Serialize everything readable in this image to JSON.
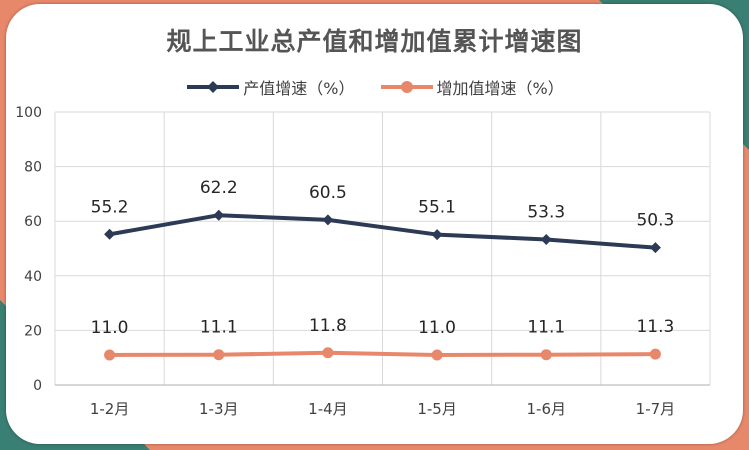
{
  "colors": {
    "series_1": "#2c3a55",
    "series_2": "#e8886a",
    "corner_teal": "#3a7f73",
    "corner_orange": "#e8886a",
    "grid": "#d9d9d9",
    "text": "#404040"
  },
  "chart_data": {
    "type": "line",
    "title": "规上工业总产值和增加值累计增速图",
    "categories": [
      "1-2月",
      "1-3月",
      "1-4月",
      "1-5月",
      "1-6月",
      "1-7月"
    ],
    "series": [
      {
        "name": "产值增速（%）",
        "values": [
          55.2,
          62.2,
          60.5,
          55.1,
          53.3,
          50.3
        ],
        "marker": "diamond",
        "data_labels": [
          "55.2",
          "62.2",
          "60.5",
          "55.1",
          "53.3",
          "50.3"
        ]
      },
      {
        "name": "增加值增速（%）",
        "values": [
          11.0,
          11.1,
          11.8,
          11.0,
          11.1,
          11.3
        ],
        "marker": "circle",
        "data_labels": [
          "11.0",
          "11.1",
          "11.8",
          "11.0",
          "11.1",
          "11.3"
        ]
      }
    ],
    "yticks": [
      "0",
      "20",
      "40",
      "60",
      "80",
      "100"
    ],
    "ylim": [
      0,
      100
    ],
    "grid": true,
    "legend_position": "top"
  }
}
